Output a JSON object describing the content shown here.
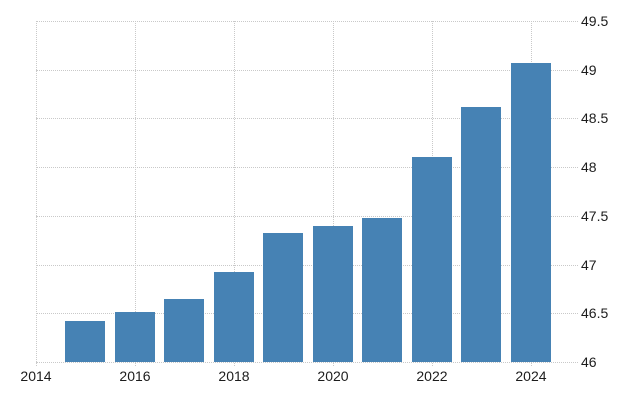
{
  "chart_data": {
    "type": "bar",
    "title": "",
    "xlabel": "",
    "ylabel": "",
    "categories": [
      2015,
      2016,
      2017,
      2018,
      2019,
      2020,
      2021,
      2022,
      2023,
      2024
    ],
    "values": [
      46.42,
      46.51,
      46.65,
      46.92,
      47.32,
      47.4,
      47.48,
      48.1,
      48.62,
      49.07
    ],
    "ylim": [
      46,
      49.5
    ],
    "xlim": [
      2014,
      2024.95
    ],
    "y_ticks": [
      46,
      46.5,
      47,
      47.5,
      48,
      48.5,
      49,
      49.5
    ],
    "y_tick_labels": [
      "46",
      "46.5",
      "47",
      "47.5",
      "48",
      "48.5",
      "49",
      "49.5"
    ],
    "x_ticks": [
      2014,
      2016,
      2018,
      2020,
      2022,
      2024
    ],
    "x_tick_labels": [
      "2014",
      "2016",
      "2018",
      "2020",
      "2022",
      "2024"
    ],
    "grid": true,
    "legend": false,
    "legend_position": "none",
    "y_axis_side": "right",
    "colors": {
      "bar": "#4682b4",
      "gridline": "#c9c9c9",
      "tick_text": "#1c1c1c",
      "background": "#ffffff"
    }
  }
}
